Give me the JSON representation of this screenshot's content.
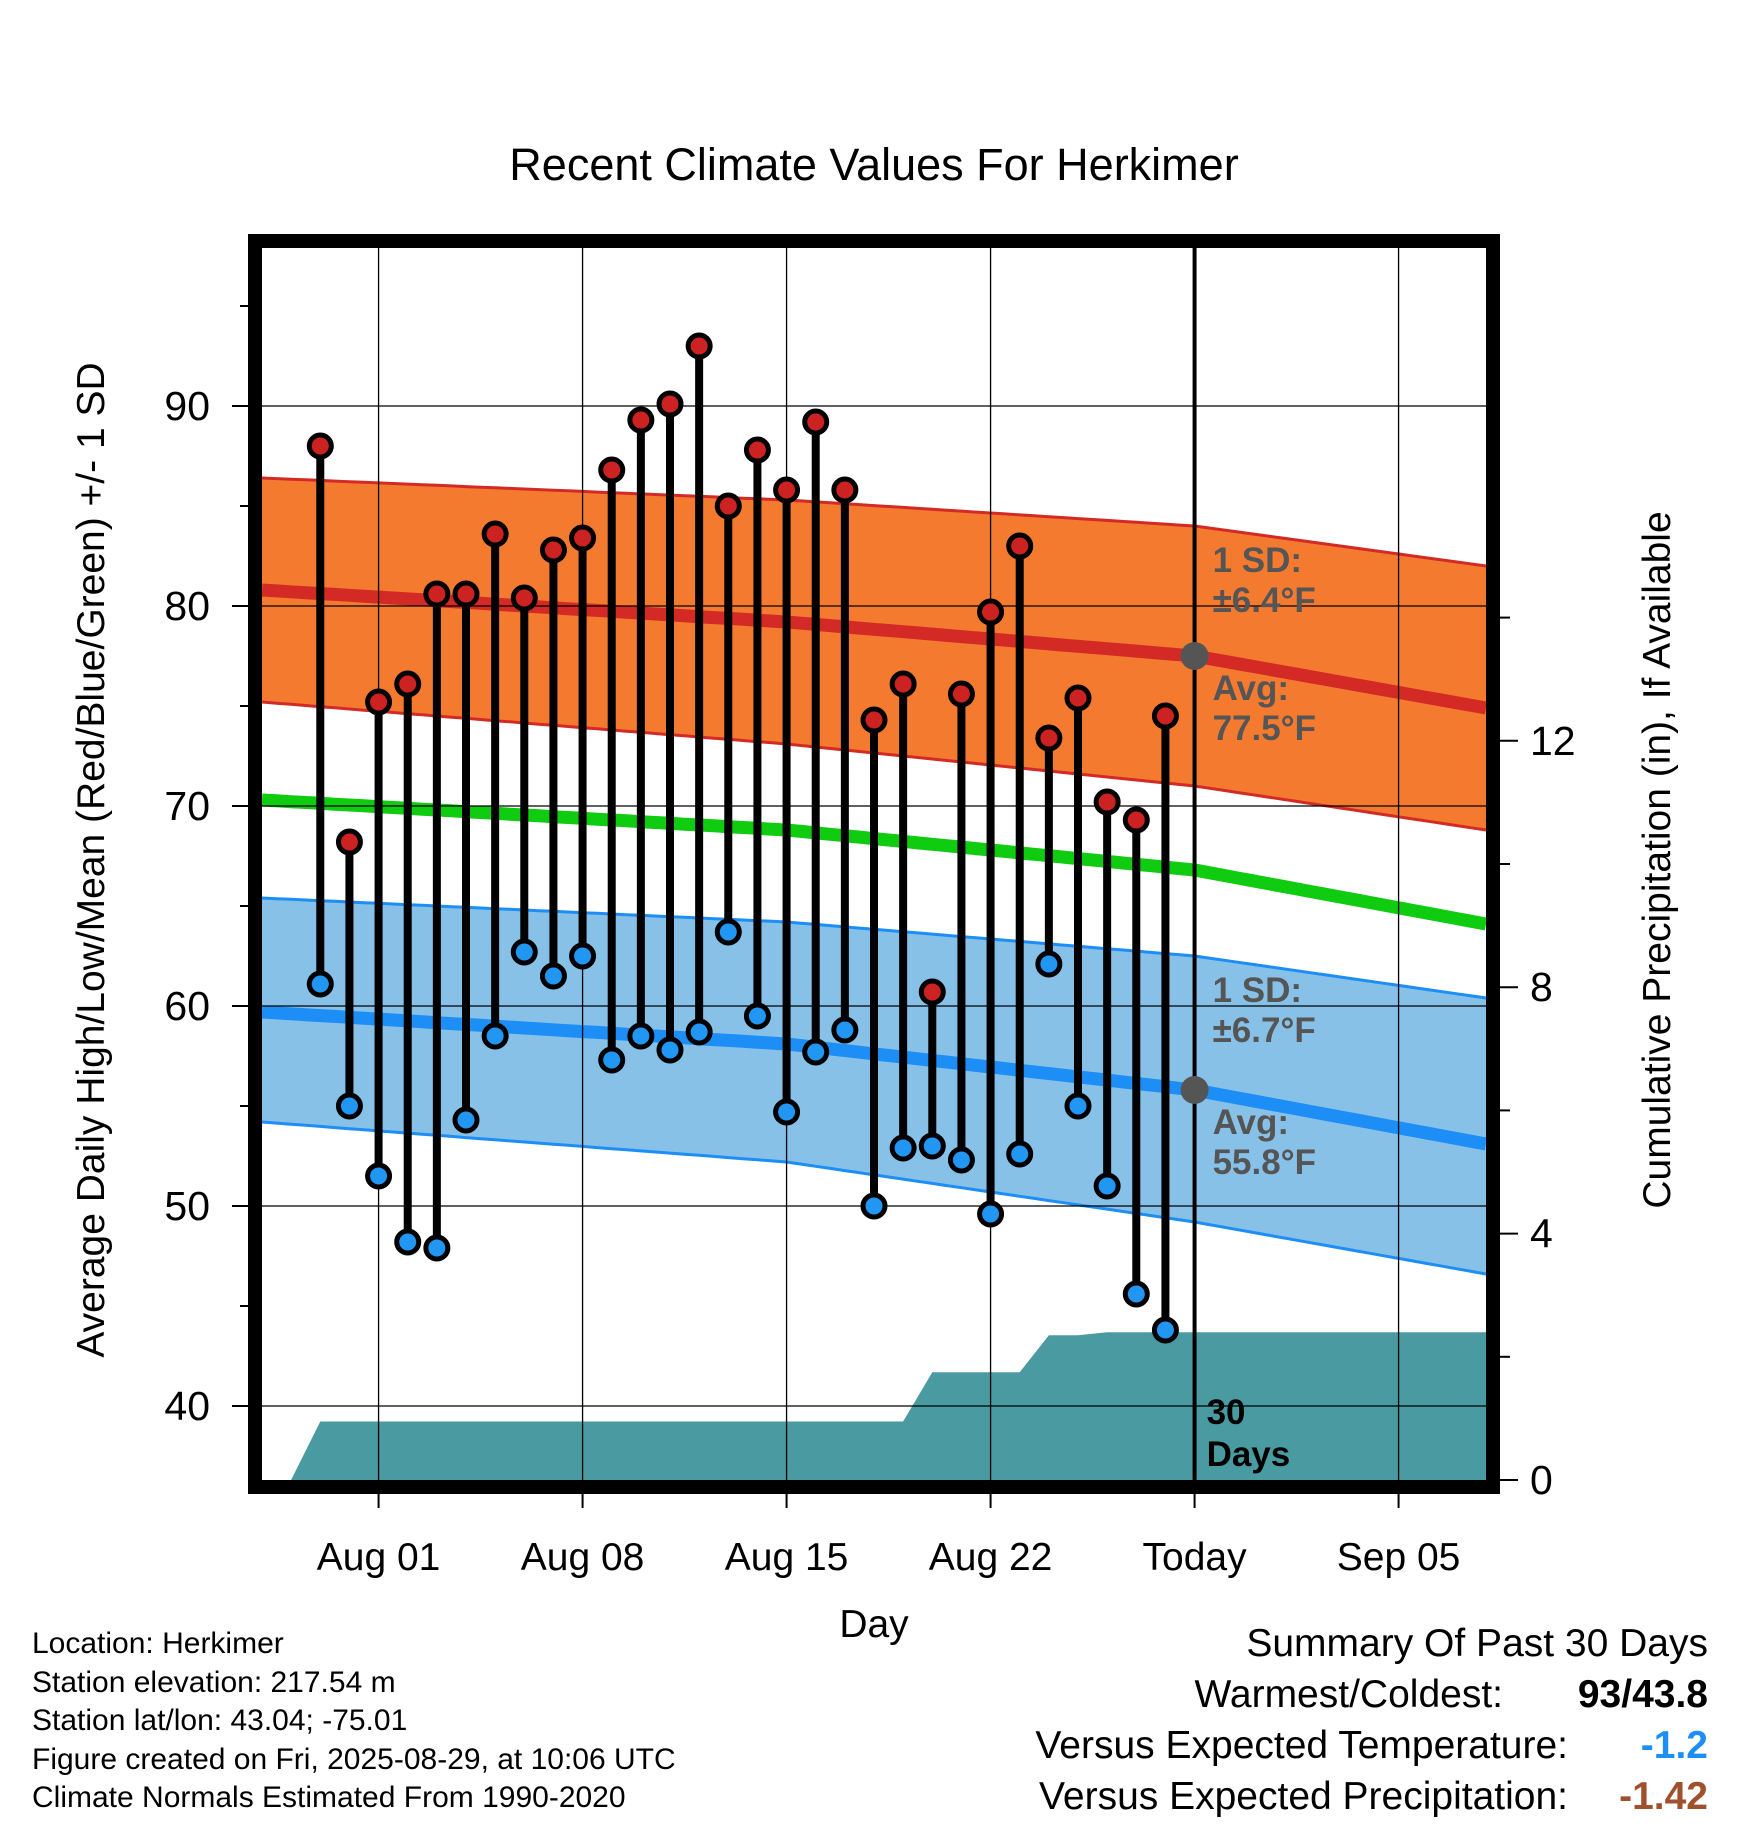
{
  "chart_data": {
    "type": "line",
    "title": "Recent Climate Values For Herkimer",
    "xlabel": "Day",
    "ylabel": "Average Daily High/Low/Mean (Red/Blue/Green) +/- 1 SD",
    "y2label": "Cumulative Precipitation (in), If Available",
    "xlim": [
      "Jul 28",
      "Sep 08"
    ],
    "ylim": [
      36.3,
      97.9
    ],
    "y2lim": [
      0,
      20
    ],
    "x_ticks": [
      "Aug 01",
      "Aug 08",
      "Aug 15",
      "Aug 22",
      "Today",
      "Sep 05"
    ],
    "y_ticks": [
      40,
      50,
      60,
      70,
      80,
      90
    ],
    "y2_ticks": [
      0,
      4,
      8,
      12
    ],
    "grid": true,
    "days": [
      "Jul 30",
      "Jul 31",
      "Aug 01",
      "Aug 02",
      "Aug 03",
      "Aug 04",
      "Aug 05",
      "Aug 06",
      "Aug 07",
      "Aug 08",
      "Aug 09",
      "Aug 10",
      "Aug 11",
      "Aug 12",
      "Aug 13",
      "Aug 14",
      "Aug 15",
      "Aug 16",
      "Aug 17",
      "Aug 18",
      "Aug 19",
      "Aug 20",
      "Aug 21",
      "Aug 22",
      "Aug 23",
      "Aug 24",
      "Aug 25",
      "Aug 26",
      "Aug 27",
      "Aug 28"
    ],
    "highs": [
      88,
      68.2,
      75.2,
      76.1,
      80.6,
      80.6,
      83.6,
      80.4,
      82.8,
      83.4,
      86.8,
      89.3,
      90.1,
      93,
      85,
      87.8,
      85.8,
      89.2,
      85.8,
      74.3,
      76.1,
      60.7,
      75.6,
      79.7,
      83,
      73.4,
      75.4,
      70.2,
      69.3,
      74.5
    ],
    "lows": [
      61.1,
      55,
      51.5,
      48.2,
      47.9,
      54.3,
      58.5,
      62.7,
      61.5,
      62.5,
      57.3,
      58.5,
      57.8,
      58.7,
      63.7,
      59.5,
      54.7,
      57.7,
      58.8,
      50,
      52.9,
      53,
      52.3,
      49.6,
      52.6,
      62.1,
      55,
      51,
      45.6,
      43.8
    ],
    "normals": {
      "x": [
        "Jul 28",
        "Aug 15",
        "Aug 29",
        "Sep 08"
      ],
      "high_avg": [
        80.8,
        79.2,
        77.5,
        74.9
      ],
      "high_upper": [
        86.4,
        85.3,
        84,
        82
      ],
      "high_lower": [
        75.2,
        73.1,
        71,
        68.8
      ],
      "mean": [
        70.3,
        68.8,
        66.8,
        64.1
      ],
      "low_avg": [
        59.7,
        58.1,
        55.8,
        53.1
      ],
      "low_upper": [
        65.4,
        64.2,
        62.5,
        60.4
      ],
      "low_lower": [
        54.2,
        52.2,
        49.2,
        46.6
      ]
    },
    "precip_cumulative": {
      "x": [
        "Jul 29",
        "Jul 30",
        "Aug 19",
        "Aug 20",
        "Aug 21",
        "Aug 22",
        "Aug 23",
        "Aug 24",
        "Aug 25",
        "Aug 26",
        "Sep 08"
      ],
      "y": [
        0,
        0.95,
        0.95,
        1.75,
        1.75,
        1.75,
        1.75,
        2.35,
        2.35,
        2.4,
        2.4
      ]
    },
    "annotations": {
      "high_sd_label": "1 SD:",
      "high_sd_value": "±6.4°F",
      "high_avg_label": "Avg:",
      "high_avg_value": "77.5°F",
      "low_sd_label": "1 SD:",
      "low_sd_value": "±6.7°F",
      "low_avg_label": "Avg:",
      "low_avg_value": "55.8°F",
      "days_line1": "30",
      "days_line2": "Days"
    }
  },
  "info": {
    "location": "Location: Herkimer",
    "elevation": "Station elevation: 217.54 m",
    "latlon": "Station lat/lon: 43.04; -75.01",
    "created": "Figure created on Fri, 2025-08-29, at 10:06 UTC",
    "normals": "Climate Normals Estimated From 1990-2020"
  },
  "summary": {
    "title": "Summary Of Past 30 Days",
    "warmest_label": "Warmest/Coldest:",
    "warmest_value": "93",
    "warmest_sep": "/",
    "coldest_value": "43.8",
    "temp_label": "Versus Expected Temperature:",
    "temp_value": "-1.2",
    "precip_label": "Versus Expected Precipitation:",
    "precip_value": "-1.42"
  },
  "colors": {
    "high_band": "#f47a30",
    "high_line": "#d42a26",
    "mean_line": "#10cc10",
    "low_band": "#87c1e8",
    "low_line": "#1d8ef5",
    "precip": "#4a9aa2",
    "high_dot": "#cc2222",
    "low_dot": "#2196f3",
    "annotation": "#555555",
    "temp_anomaly": "#1d8ef5",
    "precip_anomaly": "#a0502c"
  }
}
